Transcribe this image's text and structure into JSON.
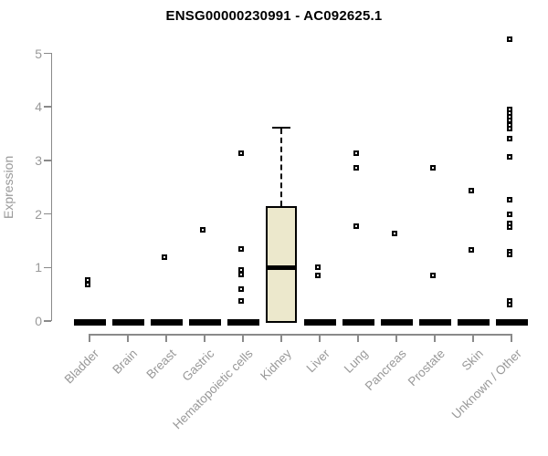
{
  "title": "ENSG00000230991 - AC092625.1",
  "chart_data": {
    "type": "boxplot",
    "title": "ENSG00000230991 - AC092625.1",
    "xlabel": "",
    "ylabel": "Expression",
    "ylim": [
      0,
      5
    ],
    "yticks": [
      0,
      1,
      2,
      3,
      4,
      5
    ],
    "grid": false,
    "legend": null,
    "categories": [
      "Bladder",
      "Brain",
      "Breast",
      "Gastric",
      "Hematopoietic cells",
      "Kidney",
      "Liver",
      "Lung",
      "Pancreas",
      "Prostate",
      "Skin",
      "Unknown / Other"
    ],
    "boxes": [
      {
        "category": "Bladder",
        "q1": 0,
        "median": 0,
        "q3": 0,
        "whisker_low": 0,
        "whisker_high": 0,
        "outliers": [
          0.76,
          0.68
        ]
      },
      {
        "category": "Brain",
        "q1": 0,
        "median": 0,
        "q3": 0,
        "whisker_low": 0,
        "whisker_high": 0,
        "outliers": []
      },
      {
        "category": "Breast",
        "q1": 0,
        "median": 0,
        "q3": 0,
        "whisker_low": 0,
        "whisker_high": 0,
        "outliers": [
          1.2
        ]
      },
      {
        "category": "Gastric",
        "q1": 0,
        "median": 0,
        "q3": 0,
        "whisker_low": 0,
        "whisker_high": 0,
        "outliers": [
          1.7
        ]
      },
      {
        "category": "Hematopoietic cells",
        "q1": 0,
        "median": 0,
        "q3": 0,
        "whisker_low": 0,
        "whisker_high": 0,
        "outliers": [
          3.13,
          1.34,
          0.95,
          0.87,
          0.59,
          0.38
        ]
      },
      {
        "category": "Kidney",
        "q1": 0,
        "median": 1.0,
        "q3": 2.15,
        "whisker_low": 0,
        "whisker_high": 3.6,
        "outliers": []
      },
      {
        "category": "Liver",
        "q1": 0,
        "median": 0,
        "q3": 0,
        "whisker_low": 0,
        "whisker_high": 0,
        "outliers": [
          1.0,
          0.86
        ]
      },
      {
        "category": "Lung",
        "q1": 0,
        "median": 0,
        "q3": 0,
        "whisker_low": 0,
        "whisker_high": 0,
        "outliers": [
          3.13,
          2.86,
          1.78
        ]
      },
      {
        "category": "Pancreas",
        "q1": 0,
        "median": 0,
        "q3": 0,
        "whisker_low": 0,
        "whisker_high": 0,
        "outliers": [
          1.63
        ]
      },
      {
        "category": "Prostate",
        "q1": 0,
        "median": 0,
        "q3": 0,
        "whisker_low": 0,
        "whisker_high": 0,
        "outliers": [
          2.87,
          0.85
        ]
      },
      {
        "category": "Skin",
        "q1": 0,
        "median": 0,
        "q3": 0,
        "whisker_low": 0,
        "whisker_high": 0,
        "outliers": [
          2.43,
          1.33
        ]
      },
      {
        "category": "Unknown / Other",
        "q1": 0,
        "median": 0,
        "q3": 0,
        "whisker_low": 0,
        "whisker_high": 0,
        "outliers": [
          5.26,
          3.95,
          3.88,
          3.81,
          3.74,
          3.67,
          3.6,
          3.4,
          3.07,
          2.26,
          1.99,
          1.83,
          1.75,
          1.3,
          1.25,
          0.37,
          0.3
        ]
      }
    ],
    "colors": {
      "box_fill": "#ece8cc",
      "box_border": "#000000",
      "axis_line": "#8a8a8a",
      "axis_text": "#999999",
      "title_text": "#000000",
      "background": "#ffffff"
    }
  }
}
